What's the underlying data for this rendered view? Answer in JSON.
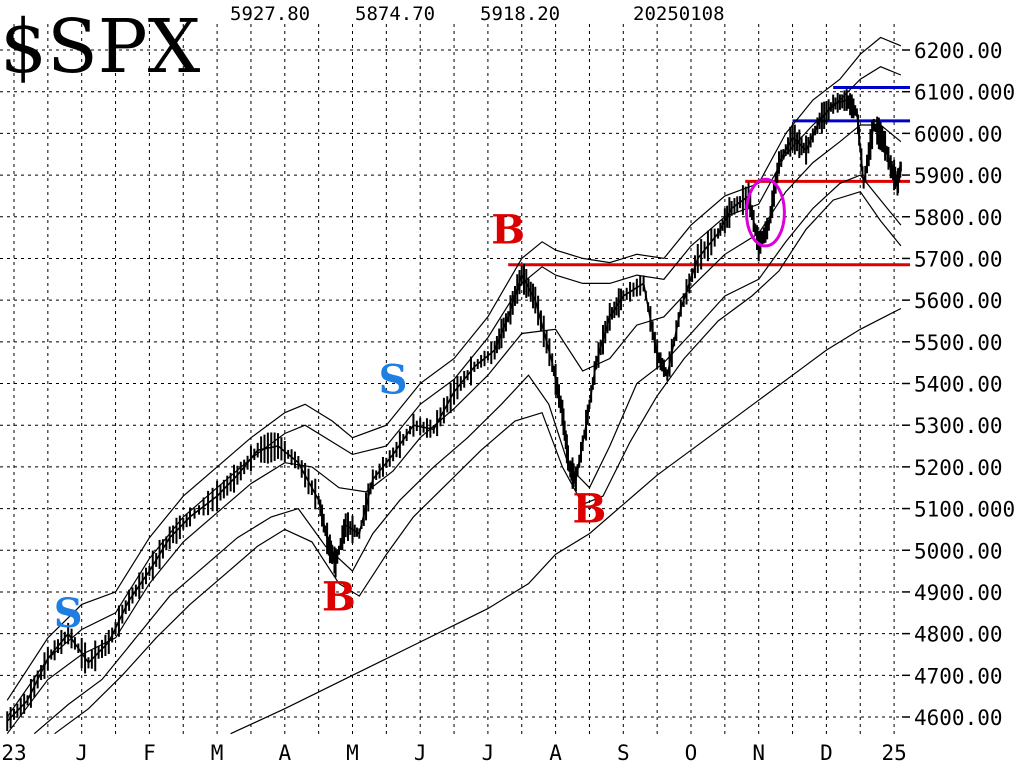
{
  "chart_data": {
    "type": "line",
    "title": "$SPX",
    "header_values": [
      "5927.80",
      "5874.70",
      "5918.20",
      "20250108"
    ],
    "ylim": [
      4550,
      6260
    ],
    "y_ticks": [
      {
        "value": 6200,
        "label": "6200.00"
      },
      {
        "value": 6100,
        "label": "6100.000"
      },
      {
        "value": 6000,
        "label": "6000.00"
      },
      {
        "value": 5900,
        "label": "5900.00"
      },
      {
        "value": 5800,
        "label": "5800.00"
      },
      {
        "value": 5700,
        "label": "5700.00"
      },
      {
        "value": 5600,
        "label": "5600.00"
      },
      {
        "value": 5500,
        "label": "5500.00"
      },
      {
        "value": 5400,
        "label": "5400.00"
      },
      {
        "value": 5300,
        "label": "5300.00"
      },
      {
        "value": 5200,
        "label": "5200.00"
      },
      {
        "value": 5100,
        "label": "5100.000"
      },
      {
        "value": 5000,
        "label": "5000.00"
      },
      {
        "value": 4900,
        "label": "4900.00"
      },
      {
        "value": 4800,
        "label": "4800.00"
      },
      {
        "value": 4700,
        "label": "4700.00"
      },
      {
        "value": 4600,
        "label": "4600.00"
      }
    ],
    "x_ticks": [
      {
        "month": 0,
        "label": "23"
      },
      {
        "month": 1,
        "label": "J"
      },
      {
        "month": 2,
        "label": "F"
      },
      {
        "month": 3,
        "label": "M"
      },
      {
        "month": 4,
        "label": "A"
      },
      {
        "month": 5,
        "label": "M"
      },
      {
        "month": 6,
        "label": "J"
      },
      {
        "month": 7,
        "label": "J"
      },
      {
        "month": 8,
        "label": "A"
      },
      {
        "month": 9,
        "label": "S"
      },
      {
        "month": 10,
        "label": "O"
      },
      {
        "month": 11,
        "label": "N"
      },
      {
        "month": 12,
        "label": "D"
      },
      {
        "month": 13,
        "label": "25"
      }
    ],
    "grid": true,
    "price_series": [
      [
        -0.1,
        4590
      ],
      [
        0.2,
        4640
      ],
      [
        0.5,
        4740
      ],
      [
        0.8,
        4800
      ],
      [
        1.1,
        4730
      ],
      [
        1.4,
        4780
      ],
      [
        1.7,
        4880
      ],
      [
        2.0,
        4950
      ],
      [
        2.3,
        5030
      ],
      [
        2.6,
        5080
      ],
      [
        3.0,
        5130
      ],
      [
        3.3,
        5180
      ],
      [
        3.6,
        5240
      ],
      [
        3.9,
        5250
      ],
      [
        4.2,
        5210
      ],
      [
        4.5,
        5120
      ],
      [
        4.65,
        5010
      ],
      [
        4.75,
        4970
      ],
      [
        4.9,
        5060
      ],
      [
        5.1,
        5040
      ],
      [
        5.3,
        5170
      ],
      [
        5.6,
        5230
      ],
      [
        5.9,
        5300
      ],
      [
        6.2,
        5290
      ],
      [
        6.5,
        5380
      ],
      [
        6.8,
        5440
      ],
      [
        7.1,
        5480
      ],
      [
        7.3,
        5560
      ],
      [
        7.5,
        5660
      ],
      [
        7.7,
        5600
      ],
      [
        7.95,
        5450
      ],
      [
        8.1,
        5330
      ],
      [
        8.2,
        5200
      ],
      [
        8.3,
        5170
      ],
      [
        8.45,
        5300
      ],
      [
        8.6,
        5450
      ],
      [
        8.8,
        5560
      ],
      [
        9.0,
        5610
      ],
      [
        9.3,
        5640
      ],
      [
        9.5,
        5470
      ],
      [
        9.65,
        5420
      ],
      [
        9.85,
        5580
      ],
      [
        10.1,
        5700
      ],
      [
        10.4,
        5760
      ],
      [
        10.6,
        5820
      ],
      [
        10.85,
        5850
      ],
      [
        11.0,
        5730
      ],
      [
        11.15,
        5780
      ],
      [
        11.3,
        5930
      ],
      [
        11.5,
        5990
      ],
      [
        11.7,
        5960
      ],
      [
        11.9,
        6030
      ],
      [
        12.1,
        6070
      ],
      [
        12.3,
        6080
      ],
      [
        12.45,
        6050
      ],
      [
        12.55,
        5880
      ],
      [
        12.7,
        6020
      ],
      [
        12.85,
        5980
      ],
      [
        12.95,
        5920
      ],
      [
        13.05,
        5880
      ],
      [
        13.1,
        5920
      ]
    ],
    "upper_band_outer": [
      [
        -0.1,
        4640
      ],
      [
        0.5,
        4790
      ],
      [
        1.0,
        4870
      ],
      [
        1.5,
        4900
      ],
      [
        2.0,
        5030
      ],
      [
        2.5,
        5130
      ],
      [
        3.0,
        5200
      ],
      [
        3.5,
        5270
      ],
      [
        4.0,
        5330
      ],
      [
        4.3,
        5350
      ],
      [
        4.7,
        5310
      ],
      [
        5.0,
        5270
      ],
      [
        5.5,
        5300
      ],
      [
        6.0,
        5400
      ],
      [
        6.5,
        5460
      ],
      [
        7.0,
        5560
      ],
      [
        7.5,
        5700
      ],
      [
        7.8,
        5740
      ],
      [
        8.0,
        5720
      ],
      [
        8.4,
        5700
      ],
      [
        8.8,
        5690
      ],
      [
        9.2,
        5710
      ],
      [
        9.6,
        5700
      ],
      [
        10.0,
        5780
      ],
      [
        10.5,
        5850
      ],
      [
        11.0,
        5880
      ],
      [
        11.4,
        6000
      ],
      [
        11.8,
        6080
      ],
      [
        12.2,
        6130
      ],
      [
        12.5,
        6190
      ],
      [
        12.8,
        6230
      ],
      [
        13.1,
        6210
      ]
    ],
    "upper_band_inner": [
      [
        -0.1,
        4600
      ],
      [
        0.5,
        4740
      ],
      [
        1.0,
        4810
      ],
      [
        1.5,
        4850
      ],
      [
        2.0,
        4980
      ],
      [
        2.5,
        5080
      ],
      [
        3.0,
        5150
      ],
      [
        3.5,
        5220
      ],
      [
        4.0,
        5280
      ],
      [
        4.3,
        5300
      ],
      [
        4.7,
        5260
      ],
      [
        5.0,
        5230
      ],
      [
        5.5,
        5250
      ],
      [
        6.0,
        5350
      ],
      [
        6.5,
        5410
      ],
      [
        7.0,
        5510
      ],
      [
        7.5,
        5640
      ],
      [
        7.8,
        5680
      ],
      [
        8.0,
        5660
      ],
      [
        8.4,
        5640
      ],
      [
        8.8,
        5640
      ],
      [
        9.2,
        5660
      ],
      [
        9.6,
        5650
      ],
      [
        10.0,
        5730
      ],
      [
        10.5,
        5800
      ],
      [
        11.0,
        5830
      ],
      [
        11.4,
        5950
      ],
      [
        11.8,
        6020
      ],
      [
        12.2,
        6080
      ],
      [
        12.5,
        6130
      ],
      [
        12.8,
        6160
      ],
      [
        13.1,
        6140
      ]
    ],
    "middle_line": [
      [
        -0.1,
        4560
      ],
      [
        0.5,
        4690
      ],
      [
        1.0,
        4750
      ],
      [
        1.5,
        4790
      ],
      [
        2.0,
        4920
      ],
      [
        2.5,
        5020
      ],
      [
        3.0,
        5090
      ],
      [
        3.5,
        5160
      ],
      [
        4.0,
        5210
      ],
      [
        4.4,
        5200
      ],
      [
        4.8,
        5150
      ],
      [
        5.2,
        5140
      ],
      [
        5.6,
        5190
      ],
      [
        6.0,
        5270
      ],
      [
        6.5,
        5340
      ],
      [
        7.0,
        5420
      ],
      [
        7.5,
        5520
      ],
      [
        8.0,
        5530
      ],
      [
        8.4,
        5430
      ],
      [
        8.8,
        5460
      ],
      [
        9.2,
        5540
      ],
      [
        9.6,
        5560
      ],
      [
        10.0,
        5630
      ],
      [
        10.5,
        5710
      ],
      [
        11.0,
        5760
      ],
      [
        11.4,
        5860
      ],
      [
        11.8,
        5930
      ],
      [
        12.2,
        5980
      ],
      [
        12.5,
        6020
      ],
      [
        12.8,
        6020
      ],
      [
        13.1,
        5980
      ]
    ],
    "lower_band_inner": [
      [
        0.3,
        4560
      ],
      [
        0.8,
        4630
      ],
      [
        1.3,
        4690
      ],
      [
        1.8,
        4790
      ],
      [
        2.3,
        4890
      ],
      [
        2.8,
        4960
      ],
      [
        3.3,
        5030
      ],
      [
        3.8,
        5080
      ],
      [
        4.2,
        5100
      ],
      [
        4.6,
        5010
      ],
      [
        5.0,
        4950
      ],
      [
        5.3,
        5040
      ],
      [
        5.7,
        5120
      ],
      [
        6.2,
        5200
      ],
      [
        6.7,
        5270
      ],
      [
        7.2,
        5350
      ],
      [
        7.6,
        5420
      ],
      [
        7.9,
        5350
      ],
      [
        8.2,
        5200
      ],
      [
        8.5,
        5150
      ],
      [
        8.8,
        5250
      ],
      [
        9.2,
        5400
      ],
      [
        9.6,
        5450
      ],
      [
        10.0,
        5520
      ],
      [
        10.5,
        5610
      ],
      [
        11.0,
        5650
      ],
      [
        11.4,
        5740
      ],
      [
        11.8,
        5820
      ],
      [
        12.2,
        5880
      ],
      [
        12.5,
        5900
      ],
      [
        12.8,
        5840
      ],
      [
        13.1,
        5780
      ]
    ],
    "lower_band_outer": [
      [
        0.6,
        4560
      ],
      [
        1.1,
        4620
      ],
      [
        1.6,
        4700
      ],
      [
        2.1,
        4790
      ],
      [
        2.6,
        4870
      ],
      [
        3.1,
        4940
      ],
      [
        3.6,
        5010
      ],
      [
        4.0,
        5050
      ],
      [
        4.4,
        5020
      ],
      [
        4.8,
        4920
      ],
      [
        5.1,
        4890
      ],
      [
        5.5,
        4990
      ],
      [
        5.9,
        5080
      ],
      [
        6.4,
        5160
      ],
      [
        6.9,
        5240
      ],
      [
        7.4,
        5310
      ],
      [
        7.8,
        5330
      ],
      [
        8.1,
        5200
      ],
      [
        8.4,
        5110
      ],
      [
        8.7,
        5130
      ],
      [
        9.1,
        5260
      ],
      [
        9.5,
        5370
      ],
      [
        9.9,
        5460
      ],
      [
        10.4,
        5550
      ],
      [
        10.9,
        5610
      ],
      [
        11.3,
        5670
      ],
      [
        11.7,
        5770
      ],
      [
        12.1,
        5840
      ],
      [
        12.5,
        5860
      ],
      [
        12.8,
        5790
      ],
      [
        13.1,
        5730
      ]
    ],
    "long_moving_average": [
      [
        3.2,
        4560
      ],
      [
        4.0,
        4620
      ],
      [
        5.0,
        4700
      ],
      [
        6.0,
        4780
      ],
      [
        7.0,
        4860
      ],
      [
        7.6,
        4920
      ],
      [
        8.0,
        4990
      ],
      [
        8.5,
        5040
      ],
      [
        9.0,
        5110
      ],
      [
        9.5,
        5180
      ],
      [
        10.0,
        5240
      ],
      [
        10.5,
        5300
      ],
      [
        11.0,
        5360
      ],
      [
        11.5,
        5420
      ],
      [
        12.0,
        5480
      ],
      [
        12.5,
        5530
      ],
      [
        13.1,
        5580
      ]
    ],
    "horizontal_lines": [
      {
        "color": "#0000cc",
        "value": 6110,
        "from_month": 12.1,
        "to_month": 13.3
      },
      {
        "color": "#0000cc",
        "value": 6030,
        "from_month": 11.5,
        "to_month": 13.3
      },
      {
        "color": "#dd0000",
        "value": 5885,
        "from_month": 10.8,
        "to_month": 13.3
      },
      {
        "color": "#dd0000",
        "value": 5685,
        "from_month": 7.3,
        "to_month": 13.3
      }
    ],
    "highlight_ellipse": {
      "color": "#dd00dd",
      "center_month": 11.1,
      "center_value": 5810,
      "radius_months": 0.28,
      "radius_value": 80
    },
    "annotations": [
      {
        "text": "S",
        "color": "#1e7fe0",
        "month": 0.8,
        "value": 4840
      },
      {
        "text": "B",
        "color": "#dd0000",
        "month": 4.8,
        "value": 4880
      },
      {
        "text": "S",
        "color": "#1e7fe0",
        "month": 5.6,
        "value": 5400
      },
      {
        "text": "B",
        "color": "#dd0000",
        "month": 7.3,
        "value": 5760
      },
      {
        "text": "B",
        "color": "#dd0000",
        "month": 8.5,
        "value": 5090
      }
    ]
  }
}
